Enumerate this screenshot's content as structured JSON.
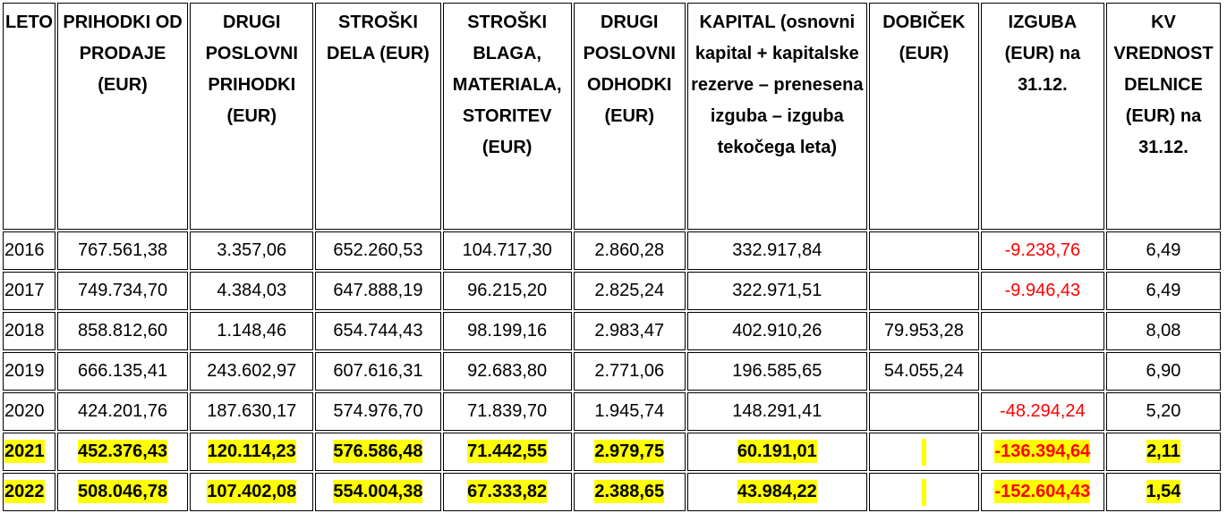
{
  "table": {
    "header": [
      "LETO",
      "PRIHODKI OD PRODAJE (EUR)",
      "DRUGI POSLOVNI PRIHODKI (EUR)",
      "STROŠKI DELA (EUR)",
      "STROŠKI BLAGA, MATERIALA, STORITEV (EUR)",
      "DRUGI POSLOVNI ODHODKI (EUR)",
      "KAPITAL (osnovni kapital + kapitalske rezerve – prenesena izguba – izguba tekočega leta)",
      "DOBIČEK (EUR)",
      "IZGUBA (EUR) na 31.12.",
      "KV VREDNOST DELNICE (EUR) na 31.12."
    ],
    "highlight_color": "#ffff00",
    "negative_color": "#ff0000",
    "rows": [
      {
        "cells": [
          "2016",
          "767.561,38",
          "3.357,06",
          "652.260,53",
          "104.717,30",
          "2.860,28",
          "332.917,84",
          null,
          "-9.238,76",
          "6,49"
        ],
        "highlight": false
      },
      {
        "cells": [
          "2017",
          "749.734,70",
          "4.384,03",
          "647.888,19",
          "96.215,20",
          "2.825,24",
          "322.971,51",
          null,
          "-9.946,43",
          "6,49"
        ],
        "highlight": false
      },
      {
        "cells": [
          "2018",
          "858.812,60",
          "1.148,46",
          "654.744,43",
          "98.199,16",
          "2.983,47",
          "402.910,26",
          "79.953,28",
          null,
          "8,08"
        ],
        "highlight": false
      },
      {
        "cells": [
          "2019",
          "666.135,41",
          "243.602,97",
          "607.616,31",
          "92.683,80",
          "2.771,06",
          "196.585,65",
          "54.055,24",
          null,
          "6,90"
        ],
        "highlight": false
      },
      {
        "cells": [
          "2020",
          "424.201,76",
          "187.630,17",
          "574.976,70",
          "71.839,70",
          "1.945,74",
          "148.291,41",
          null,
          "-48.294,24",
          "5,20"
        ],
        "highlight": false
      },
      {
        "cells": [
          "2021",
          "452.376,43",
          "120.114,23",
          "576.586,48",
          "71.442,55",
          "2.979,75",
          "60.191,01",
          null,
          "-136.394,64",
          "2,11"
        ],
        "highlight": true
      },
      {
        "cells": [
          "2022",
          "508.046,78",
          "107.402,08",
          "554.004,38",
          "67.333,82",
          "2.388,65",
          "43.984,22",
          null,
          "-152.604,43",
          "1,54"
        ],
        "highlight": true
      }
    ]
  }
}
